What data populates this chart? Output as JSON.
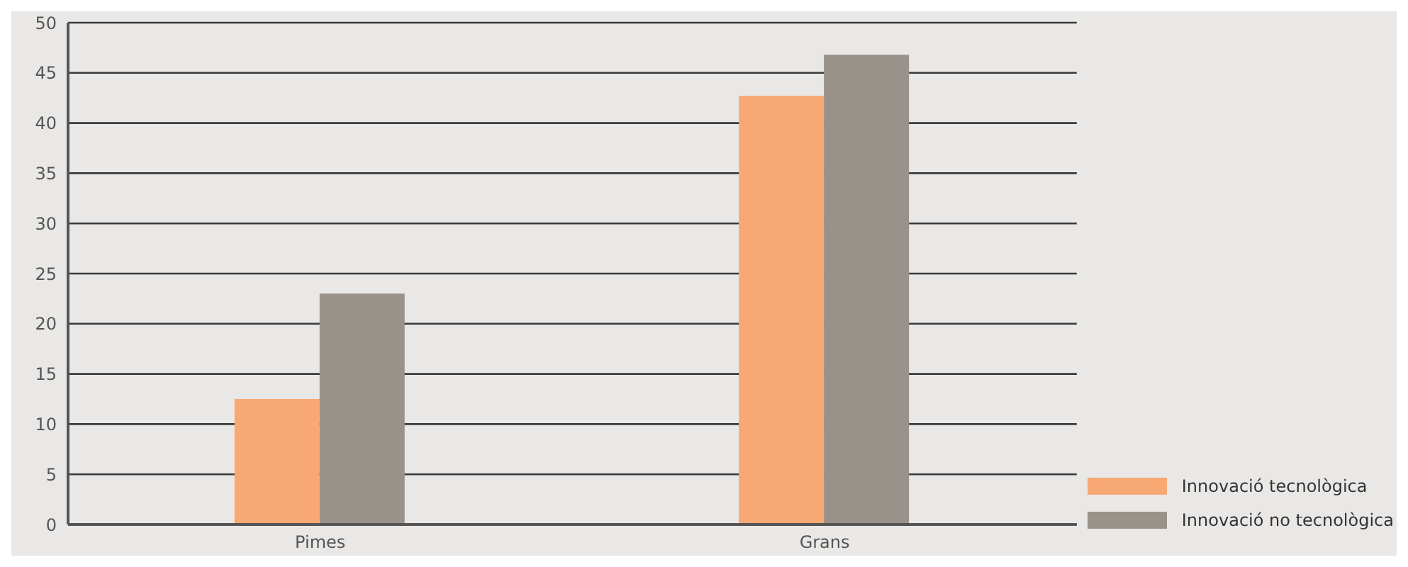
{
  "chart_data": {
    "type": "bar",
    "categories": [
      "Pimes",
      "Grans"
    ],
    "series": [
      {
        "name": "Innovació tecnològica",
        "color": "#f8a872",
        "values": [
          12.5,
          42.7
        ]
      },
      {
        "name": "Innovació no tecnològica",
        "color": "#99928b",
        "values": [
          23,
          46.8
        ]
      }
    ],
    "ylim": [
      0,
      50
    ],
    "yticks": [
      0,
      5,
      10,
      15,
      20,
      25,
      30,
      35,
      40,
      45,
      50
    ],
    "grid": "y",
    "legend": "bottom right"
  }
}
